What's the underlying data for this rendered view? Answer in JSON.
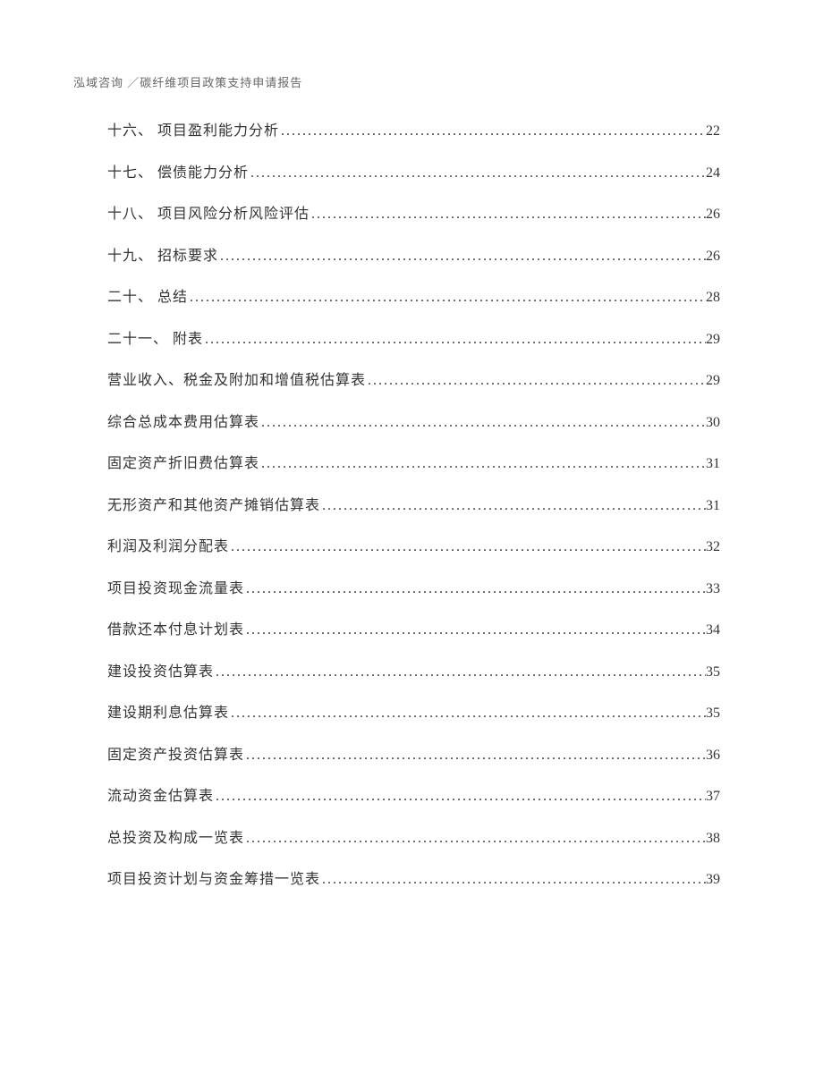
{
  "header_text": "泓域咨询 ／碳纤维项目政策支持申请报告",
  "toc_entries": [
    {
      "title": "十六、 项目盈利能力分析",
      "page": "22"
    },
    {
      "title": "十七、 偿债能力分析",
      "page": "24"
    },
    {
      "title": "十八、 项目风险分析风险评估",
      "page": "26"
    },
    {
      "title": "十九、 招标要求",
      "page": "26"
    },
    {
      "title": "二十、 总结",
      "page": "28"
    },
    {
      "title": "二十一、 附表",
      "page": "29"
    },
    {
      "title": "营业收入、税金及附加和增值税估算表",
      "page": "29"
    },
    {
      "title": "综合总成本费用估算表",
      "page": "30"
    },
    {
      "title": "固定资产折旧费估算表",
      "page": "31"
    },
    {
      "title": "无形资产和其他资产摊销估算表",
      "page": "31"
    },
    {
      "title": "利润及利润分配表",
      "page": "32"
    },
    {
      "title": "项目投资现金流量表",
      "page": "33"
    },
    {
      "title": "借款还本付息计划表",
      "page": "34"
    },
    {
      "title": "建设投资估算表",
      "page": "35"
    },
    {
      "title": "建设期利息估算表",
      "page": "35"
    },
    {
      "title": "固定资产投资估算表",
      "page": "36"
    },
    {
      "title": "流动资金估算表",
      "page": "37"
    },
    {
      "title": "总投资及构成一览表",
      "page": "38"
    },
    {
      "title": "项目投资计划与资金筹措一览表",
      "page": "39"
    }
  ]
}
